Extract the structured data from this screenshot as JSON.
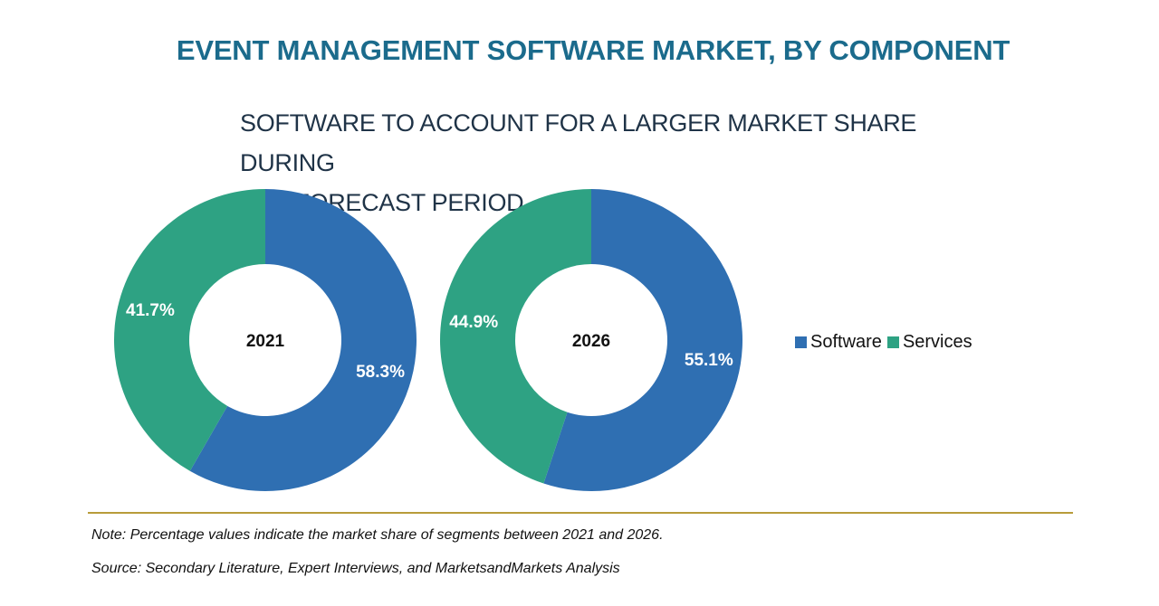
{
  "colors": {
    "title": "#1b6b8c",
    "software": "#2f6fb2",
    "services": "#2ea283",
    "rule": "#b89c3a"
  },
  "header": {
    "title": "EVENT MANAGEMENT SOFTWARE MARKET, BY COMPONENT",
    "subtitle_line1": "SOFTWARE TO ACCOUNT FOR A LARGER MARKET SHARE DURING",
    "subtitle_line2": "THE FORECAST PERIOD"
  },
  "chart_data": [
    {
      "type": "pie",
      "variant": "donut",
      "center_label": "2021",
      "slices": [
        {
          "name": "Software",
          "value": 58.3,
          "label": "58.3%"
        },
        {
          "name": "Services",
          "value": 41.7,
          "label": "41.7%"
        }
      ]
    },
    {
      "type": "pie",
      "variant": "donut",
      "center_label": "2026",
      "slices": [
        {
          "name": "Software",
          "value": 55.1,
          "label": "55.1%"
        },
        {
          "name": "Services",
          "value": 44.9,
          "label": "44.9%"
        }
      ]
    }
  ],
  "legend": {
    "software": "Software",
    "services": "Services"
  },
  "footer": {
    "note": "Note: Percentage values indicate the market share of segments between 2021 and 2026.",
    "source": "Source: Secondary Literature, Expert Interviews, and MarketsandMarkets Analysis"
  }
}
